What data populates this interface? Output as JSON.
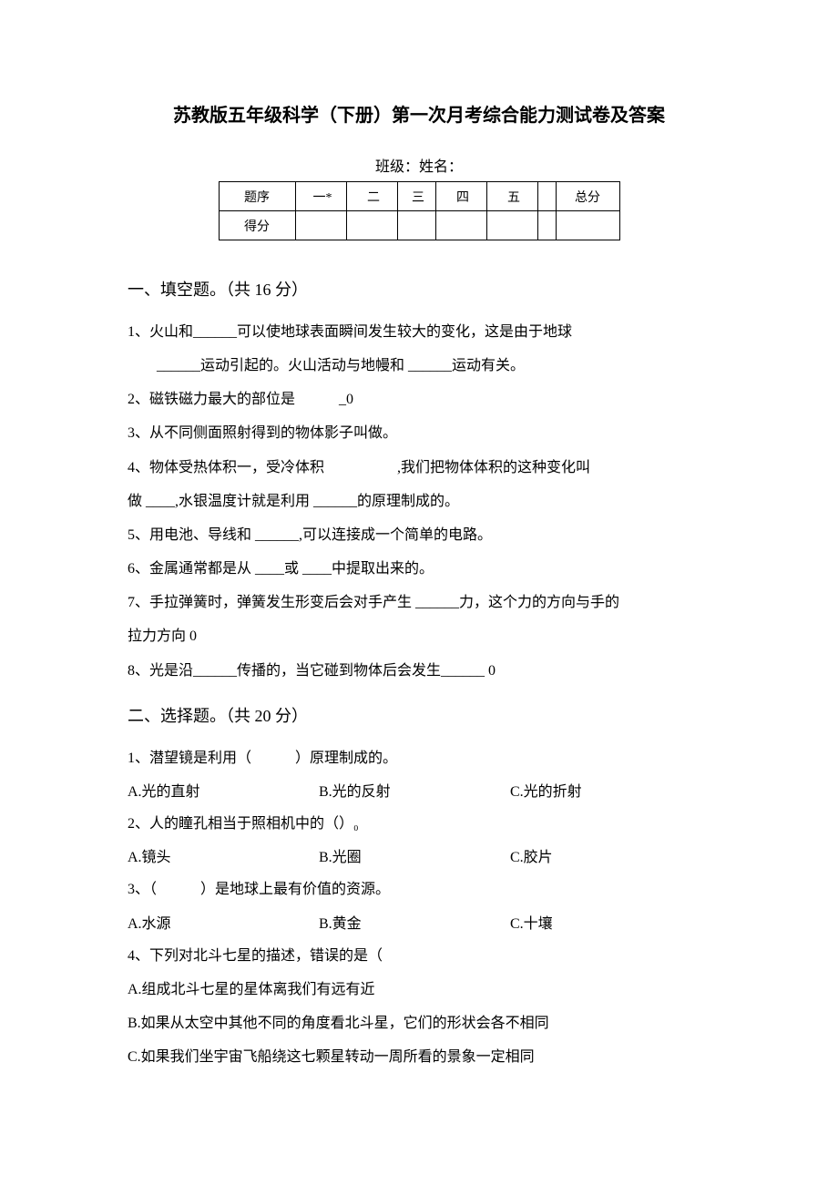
{
  "title": "苏教版五年级科学（下册）第一次月考综合能力测试卷及答案",
  "classLine": "班级：姓名：",
  "table": {
    "row1Label": "题序",
    "cols": [
      "一*",
      "二",
      "三",
      "四",
      "五",
      "",
      "总分"
    ],
    "row2Label": "得分"
  },
  "section1": {
    "heading": "一、填空题。（共 16 分）",
    "q1a": "1、火山和______可以使地球表面瞬间发生较大的变化，这是由于地球",
    "q1b": "______运动引起的。火山活动与地幔和 ______运动有关。",
    "q2": "2、磁铁磁力最大的部位是　　　_0",
    "q3": "3、从不同侧面照射得到的物体影子叫做。",
    "q4a": "4、物体受热体积一，受冷体积　　　　　,我们把物体体积的这种变化叫",
    "q4b": "做 ____,水银温度计就是利用 ______的原理制成的。",
    "q5": "5、用电池、导线和 ______,可以连接成一个简单的电路。",
    "q6": "6、金属通常都是从 ____或 ____中提取出来的。",
    "q7a": "7、手拉弹簧时，弹簧发生形变后会对手产生 ______力，这个力的方向与手的",
    "q7b": "拉力方向 0",
    "q8": "8、光是沿______传播的，当它碰到物体后会发生______ 0"
  },
  "section2": {
    "heading": "二、选择题。（共 20 分）",
    "q1": "1、潜望镜是利用（　　　）原理制成的。",
    "q1opts": {
      "a": "A.光的直射",
      "b": "B.光的反射",
      "c": "C.光的折射"
    },
    "q2": "2、人的瞳孔相当于照相机中的（）₀",
    "q2opts": {
      "a": "A.镜头",
      "b": "B.光圈",
      "c": "C.胶片"
    },
    "q3": "3、（　　　）是地球上最有价值的资源。",
    "q3opts": {
      "a": "A.水源",
      "b": "B.黄金",
      "c": "C.十壤"
    },
    "q4": "4、下列对北斗七星的描述，错误的是（",
    "q4a": "A.组成北斗七星的星体离我们有远有近",
    "q4b": "B.如果从太空中其他不同的角度看北斗星，它们的形状会各不相同",
    "q4c": "C.如果我们坐宇宙飞船绕这七颗星转动一周所看的景象一定相同"
  }
}
